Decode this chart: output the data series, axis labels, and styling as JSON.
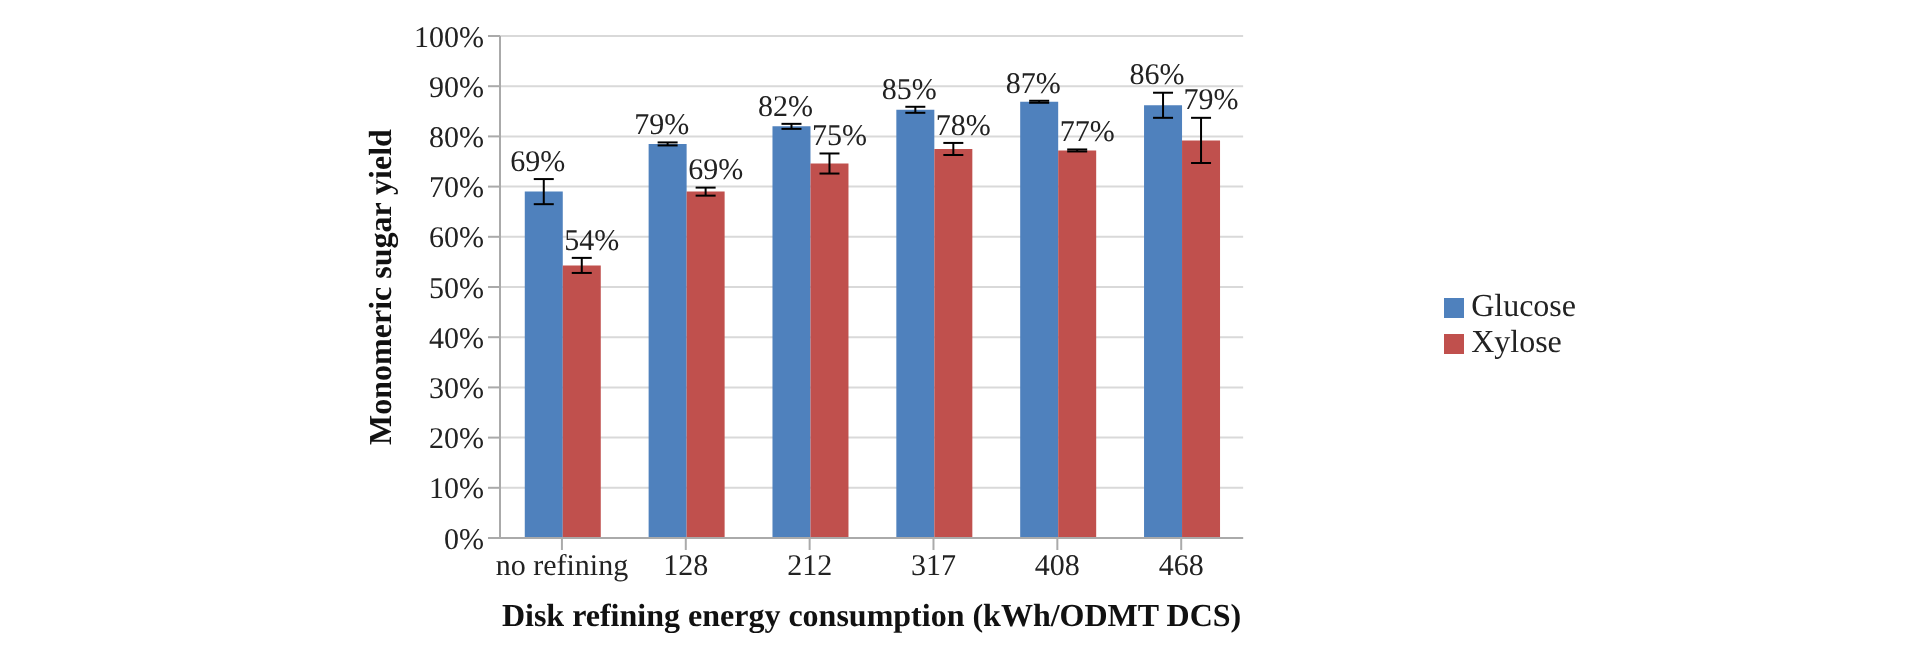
{
  "chart_data": {
    "type": "bar",
    "xlabel": "Disk refining energy consumption (kWh/ODMT DCS)",
    "ylabel": "Monomeric sugar yield",
    "categories": [
      "no refining",
      "128",
      "212",
      "317",
      "408",
      "468"
    ],
    "series": [
      {
        "name": "Glucose",
        "color": "#4f81bd",
        "values": [
          69,
          78.5,
          82,
          85.3,
          86.9,
          86.2
        ],
        "errors": [
          2.5,
          0.3,
          0.5,
          0.6,
          0.2,
          2.5
        ],
        "value_labels": [
          "69%",
          "79%",
          "82%",
          "85%",
          "87%",
          "86%"
        ]
      },
      {
        "name": "Xylose",
        "color": "#c0504d",
        "values": [
          54.3,
          69,
          74.6,
          77.5,
          77.2,
          79.2
        ],
        "errors": [
          1.5,
          0.8,
          2,
          1.2,
          0.2,
          4.5
        ],
        "value_labels": [
          "54%",
          "69%",
          "75%",
          "78%",
          "77%",
          "79%"
        ]
      }
    ],
    "ylim": [
      0,
      100
    ],
    "yticks": [
      {
        "value": 0,
        "label": "0%"
      },
      {
        "value": 10,
        "label": "10%"
      },
      {
        "value": 20,
        "label": "20%"
      },
      {
        "value": 30,
        "label": "30%"
      },
      {
        "value": 40,
        "label": "40%"
      },
      {
        "value": 50,
        "label": "50%"
      },
      {
        "value": 60,
        "label": "60%"
      },
      {
        "value": 70,
        "label": "70%"
      },
      {
        "value": 80,
        "label": "80%"
      },
      {
        "value": 90,
        "label": "90%"
      },
      {
        "value": 100,
        "label": "100%"
      }
    ],
    "grid": "y",
    "legend": "right"
  }
}
